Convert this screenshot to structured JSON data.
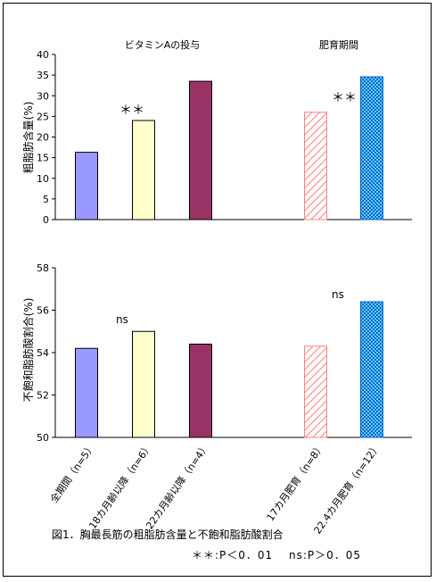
{
  "chart_data": [
    {
      "type": "bar",
      "group_labels": [
        "ビタミンAの投与",
        "肥育期間"
      ],
      "ylabel": "粗脂肪含量(%)",
      "ylim": [
        0,
        40
      ],
      "yticks": [
        "0",
        "5",
        "10",
        "15",
        "20",
        "25",
        "30",
        "35",
        "40"
      ],
      "categories": [
        "全期間（n=5）",
        "18カ月齢以降（n=6）",
        "22カ月齢以降（n=4）",
        "17カ月肥育（n=8）",
        "22.4カ月肥育（n=12）"
      ],
      "values": [
        16.3,
        24.0,
        33.5,
        26.0,
        34.6
      ],
      "annotations": [
        "＊＊",
        "＊＊"
      ],
      "grid": false
    },
    {
      "type": "bar",
      "ylabel": "不飽和脂肪酸割合(%)",
      "ylim": [
        50,
        58
      ],
      "yticks": [
        "50",
        "52",
        "54",
        "56",
        "58"
      ],
      "categories": [
        "全期間（n=5）",
        "18カ月齢以降（n=6）",
        "22カ月齢以降（n=4）",
        "17カ月肥育（n=8）",
        "22.4カ月肥育（n=12）"
      ],
      "values": [
        54.2,
        55.0,
        54.4,
        54.3,
        56.4
      ],
      "annotations": [
        "ns",
        "ns"
      ],
      "grid": false
    }
  ],
  "x_labels": [
    "全期間（n=5）",
    "18カ月齢以降（n=6）",
    "22カ月齢以降（n=4）",
    "17カ月肥育（n=8）",
    "22.4カ月肥育（n=12）"
  ],
  "caption": "図1．胸最長筋の粗脂肪含量と不飽和脂肪酸割合",
  "note": "＊＊:P＜0．01　 ns:P＞0．05",
  "colors": {
    "bar1": "#9999ff",
    "bar2": "#ffffcc",
    "bar3": "#993366",
    "bar4": "#ff8080",
    "bar5": "#0066cc",
    "hatch_bg": "#ffffff"
  }
}
